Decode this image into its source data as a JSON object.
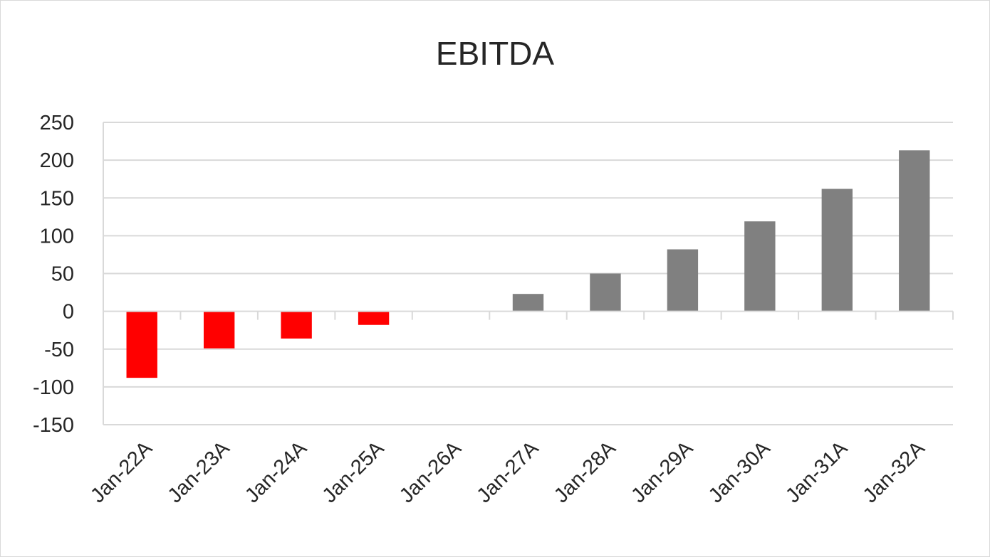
{
  "chart_data": {
    "type": "bar",
    "title": "EBITDA",
    "categories": [
      "Jan-22A",
      "Jan-23A",
      "Jan-24A",
      "Jan-25A",
      "Jan-26A",
      "Jan-27A",
      "Jan-28A",
      "Jan-29A",
      "Jan-30A",
      "Jan-31A",
      "Jan-32A"
    ],
    "values": [
      -88,
      -49,
      -36,
      -18,
      0,
      23,
      50,
      82,
      119,
      162,
      213
    ],
    "ylim": [
      -150,
      250
    ],
    "yticks": [
      250,
      200,
      150,
      100,
      50,
      0,
      -50,
      -100,
      -150
    ],
    "grid": true,
    "legend": "none",
    "colors": {
      "negative": "#ff0000",
      "positive": "#808080",
      "grid": "#d9d9d9",
      "axis": "#d9d9d9"
    }
  }
}
